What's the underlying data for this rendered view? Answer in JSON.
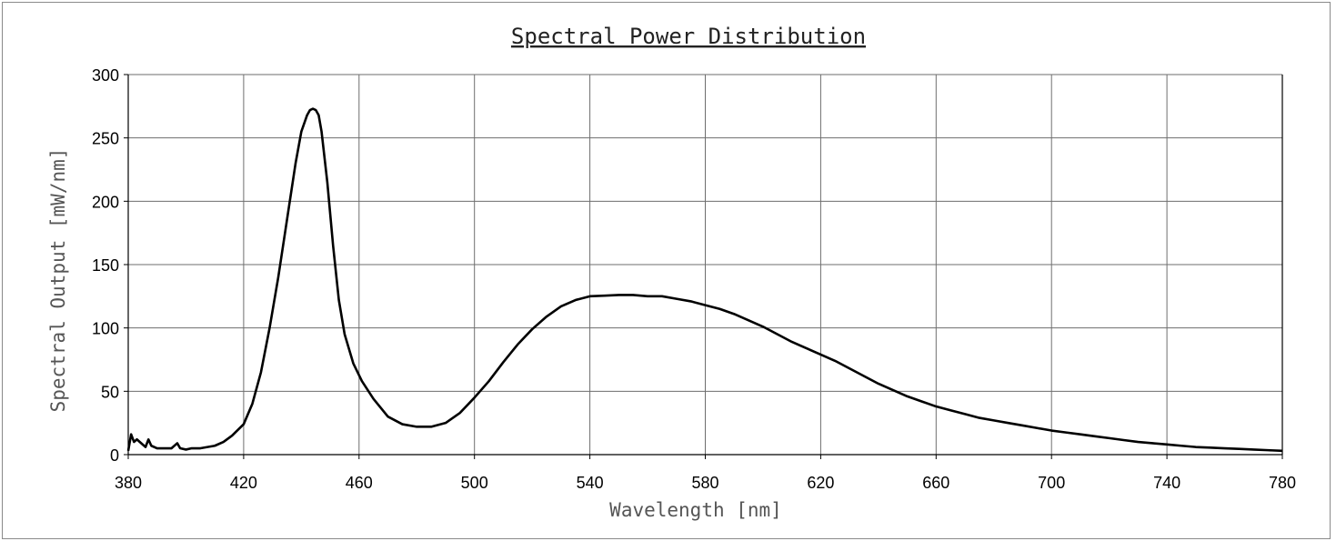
{
  "chart_data": {
    "type": "line",
    "title": "Spectral Power Distribution",
    "xlabel": "Wavelength [nm]",
    "ylabel": "Spectral Output [mW/nm]",
    "xlim": [
      380,
      780
    ],
    "ylim": [
      0,
      300
    ],
    "x_ticks": [
      380,
      420,
      460,
      500,
      540,
      580,
      620,
      660,
      700,
      740,
      780
    ],
    "y_ticks": [
      0,
      50,
      100,
      150,
      200,
      250,
      300
    ],
    "grid": true,
    "legend": "none",
    "series": [
      {
        "color": "#000000",
        "x": [
          380,
          381,
          382,
          383,
          385,
          386,
          387,
          388,
          390,
          392,
          395,
          397,
          398,
          400,
          402,
          405,
          410,
          413,
          416,
          420,
          423,
          426,
          429,
          432,
          435,
          438,
          440,
          442,
          443,
          444,
          445,
          446,
          447,
          449,
          451,
          453,
          455,
          458,
          461,
          465,
          470,
          475,
          480,
          485,
          490,
          495,
          500,
          505,
          510,
          515,
          520,
          525,
          530,
          535,
          540,
          545,
          550,
          555,
          560,
          565,
          570,
          575,
          580,
          585,
          590,
          595,
          600,
          605,
          610,
          615,
          620,
          625,
          630,
          635,
          640,
          645,
          650,
          655,
          660,
          665,
          670,
          675,
          680,
          685,
          690,
          695,
          700,
          705,
          710,
          715,
          720,
          725,
          730,
          735,
          740,
          745,
          750,
          755,
          760,
          765,
          770,
          775,
          780
        ],
        "y": [
          3,
          16,
          10,
          12,
          8,
          6,
          12,
          7,
          5,
          5,
          5,
          9,
          5,
          4,
          5,
          5,
          7,
          10,
          15,
          24,
          40,
          65,
          100,
          140,
          185,
          230,
          255,
          268,
          272,
          273,
          272,
          268,
          255,
          215,
          165,
          122,
          95,
          72,
          58,
          44,
          30,
          24,
          22,
          22,
          25,
          33,
          45,
          58,
          73,
          87,
          99,
          109,
          117,
          122,
          125,
          125.5,
          126,
          126,
          125,
          125,
          123,
          121,
          118,
          115,
          111,
          106,
          101,
          95,
          89,
          84,
          79,
          74,
          68,
          62,
          56,
          51,
          46,
          42,
          38,
          35,
          32,
          29,
          27,
          25,
          23,
          21,
          19,
          17.5,
          16,
          14.5,
          13,
          11.5,
          10,
          9,
          8,
          7,
          6,
          5.5,
          5,
          4.5,
          4,
          3.5,
          3
        ]
      }
    ]
  }
}
